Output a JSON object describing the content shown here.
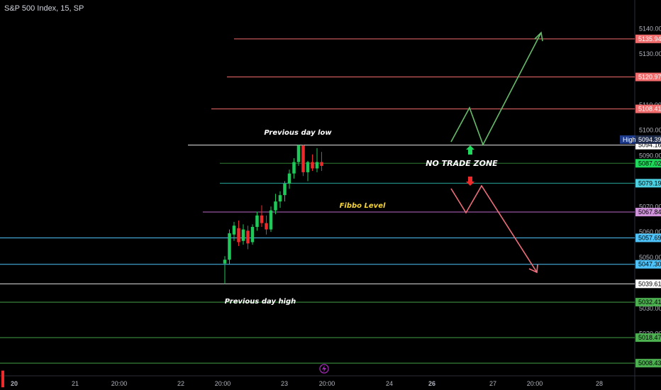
{
  "symbol": "S&P 500 Index, 15, SP",
  "chart_data": {
    "type": "candlestick",
    "y_axis_ticks": [
      5140.0,
      5130.0,
      5110.0,
      5100.0,
      5090.0,
      5070.0,
      5060.0,
      5050.0,
      5030.0,
      5020.0
    ],
    "y_range": [
      5004,
      5149
    ],
    "x_tick_labels": [
      {
        "label": "20",
        "bold": true
      },
      {
        "label": "21"
      },
      {
        "label": "20:00"
      },
      {
        "label": "22"
      },
      {
        "label": "20:00"
      },
      {
        "label": "23"
      },
      {
        "label": "20:00"
      },
      {
        "label": "24"
      },
      {
        "label": "26",
        "bold": true
      },
      {
        "label": "27"
      },
      {
        "label": "20:00"
      },
      {
        "label": "28"
      }
    ],
    "levels": [
      {
        "price": 5135.94,
        "label": "5135.94",
        "color": "#f06b6b",
        "badge_bg": "#f06b6b",
        "badge_fg": "#ffffff"
      },
      {
        "price": 5120.97,
        "label": "5120.97",
        "color": "#f06b6b",
        "badge_bg": "#f06b6b",
        "badge_fg": "#ffffff"
      },
      {
        "price": 5108.41,
        "label": "5108.41",
        "color": "#f06b6b",
        "badge_bg": "#f06b6b",
        "badge_fg": "#ffffff"
      },
      {
        "price": 5094.16,
        "label": "5094.16",
        "color": "#e6e6e6",
        "badge_bg": "#ffffff",
        "badge_fg": "#000000"
      },
      {
        "price": 5087.02,
        "label": "5087.02",
        "color": "#2e7d32",
        "badge_bg": "#1fd85c",
        "badge_fg": "#000000"
      },
      {
        "price": 5079.19,
        "label": "5079.19",
        "color": "#26a69a",
        "badge_bg": "#4dd0e1",
        "badge_fg": "#000000"
      },
      {
        "price": 5067.84,
        "label": "5067.84",
        "color": "#ba68c8",
        "badge_bg": "#ce93d8",
        "badge_fg": "#000000"
      },
      {
        "price": 5057.69,
        "label": "5057.69",
        "color": "#4fc3f7",
        "badge_bg": "#4fc3f7",
        "badge_fg": "#000000"
      },
      {
        "price": 5047.3,
        "label": "5047.30",
        "color": "#4fc3f7",
        "badge_bg": "#4fc3f7",
        "badge_fg": "#000000"
      },
      {
        "price": 5039.61,
        "label": "5039.61",
        "color": "#e6e6e6",
        "badge_bg": "#ffffff",
        "badge_fg": "#000000"
      },
      {
        "price": 5032.41,
        "label": "5032.41",
        "color": "#43a047",
        "badge_bg": "#4caf50",
        "badge_fg": "#000000"
      },
      {
        "price": 5018.47,
        "label": "5018.47",
        "color": "#43a047",
        "badge_bg": "#4caf50",
        "badge_fg": "#000000"
      },
      {
        "price": 5008.43,
        "label": "5008.43",
        "color": "#43a047",
        "badge_bg": "#4caf50",
        "badge_fg": "#000000"
      }
    ],
    "high_label": {
      "text": "High",
      "price": 5094.39,
      "value": "5094.39"
    },
    "candles": [
      {
        "o": 5047.6,
        "h": 5050.5,
        "l": 5039.6,
        "c": 5049.1
      },
      {
        "o": 5049.1,
        "h": 5061.0,
        "l": 5047.2,
        "c": 5059.5
      },
      {
        "o": 5059.0,
        "h": 5064.0,
        "l": 5056.5,
        "c": 5062.5
      },
      {
        "o": 5061.5,
        "h": 5064.5,
        "l": 5054.5,
        "c": 5056.0
      },
      {
        "o": 5056.5,
        "h": 5063.0,
        "l": 5055.0,
        "c": 5061.0
      },
      {
        "o": 5060.5,
        "h": 5062.5,
        "l": 5053.2,
        "c": 5055.5
      },
      {
        "o": 5056.0,
        "h": 5063.0,
        "l": 5055.0,
        "c": 5062.0
      },
      {
        "o": 5062.0,
        "h": 5068.0,
        "l": 5060.5,
        "c": 5066.5
      },
      {
        "o": 5066.5,
        "h": 5070.5,
        "l": 5062.0,
        "c": 5063.5
      },
      {
        "o": 5063.5,
        "h": 5066.5,
        "l": 5059.0,
        "c": 5061.0
      },
      {
        "o": 5061.0,
        "h": 5070.0,
        "l": 5060.0,
        "c": 5068.5
      },
      {
        "o": 5068.5,
        "h": 5075.0,
        "l": 5067.0,
        "c": 5072.0
      },
      {
        "o": 5072.0,
        "h": 5076.0,
        "l": 5069.5,
        "c": 5074.5
      },
      {
        "o": 5074.5,
        "h": 5080.0,
        "l": 5072.0,
        "c": 5079.0
      },
      {
        "o": 5079.0,
        "h": 5084.5,
        "l": 5077.0,
        "c": 5083.0
      },
      {
        "o": 5083.0,
        "h": 5089.0,
        "l": 5081.0,
        "c": 5087.5
      },
      {
        "o": 5087.5,
        "h": 5094.4,
        "l": 5086.0,
        "c": 5094.0
      },
      {
        "o": 5094.0,
        "h": 5094.4,
        "l": 5082.0,
        "c": 5083.5
      },
      {
        "o": 5083.5,
        "h": 5088.0,
        "l": 5080.0,
        "c": 5087.5
      },
      {
        "o": 5087.5,
        "h": 5090.5,
        "l": 5084.0,
        "c": 5085.0
      },
      {
        "o": 5085.0,
        "h": 5093.0,
        "l": 5083.5,
        "c": 5087.5
      },
      {
        "o": 5087.5,
        "h": 5091.5,
        "l": 5084.0,
        "c": 5086.0
      }
    ],
    "annotations": [
      {
        "text": "Previous day low",
        "color": "#ffffff"
      },
      {
        "text": "Previous day high",
        "color": "#ffffff"
      },
      {
        "text": "Fibbo Level",
        "color": "#f5d33b"
      },
      {
        "text": "NO TRADE ZONE",
        "color": "#ffffff"
      }
    ],
    "scenario_up_color": "#66bb6a",
    "scenario_down_color": "#ef6f7c"
  }
}
